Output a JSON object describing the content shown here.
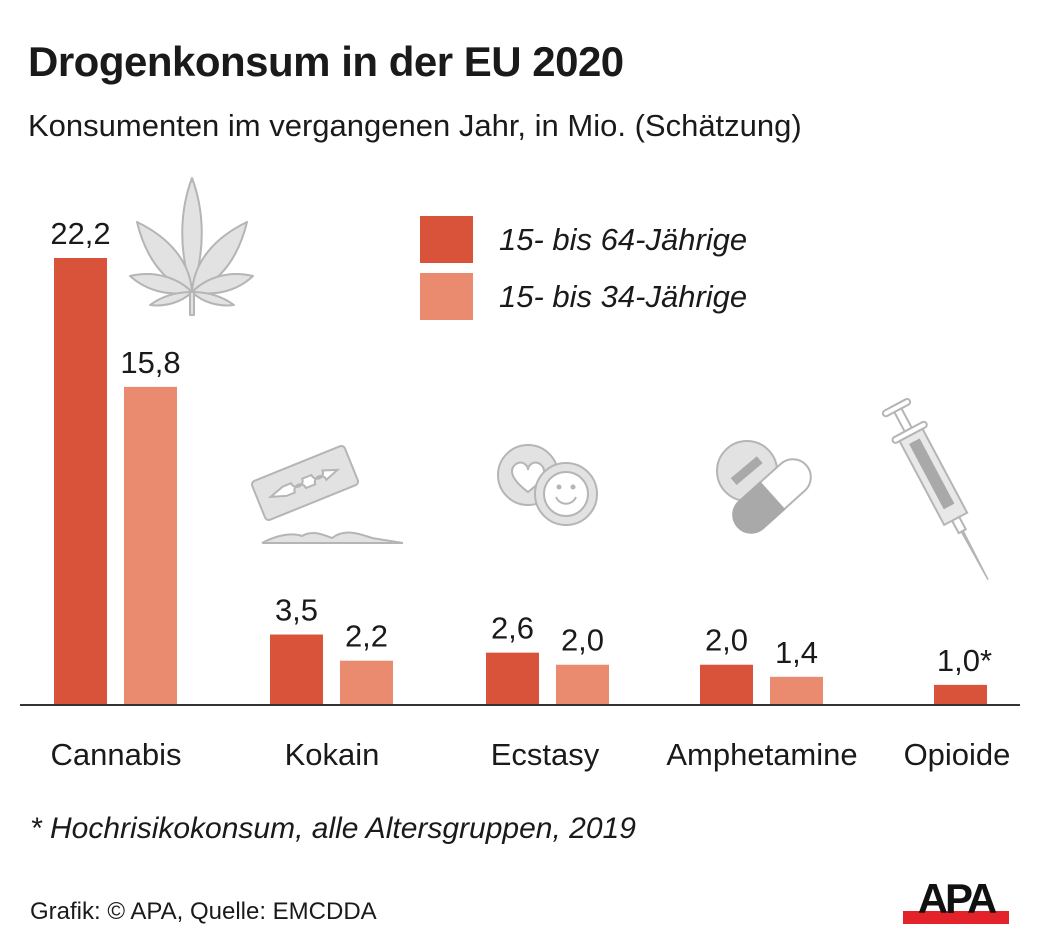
{
  "header": {
    "title": "Drogenkonsum in der EU 2020",
    "subtitle": "Konsumenten im vergangenen Jahr, in Mio. (Schätzung)"
  },
  "colors": {
    "series_1": "#d9533a",
    "series_2": "#ea8b6f",
    "axis": "#333333",
    "icon_fill": "#e2e2e2",
    "icon_stroke": "#b5b5b5",
    "icon_dark": "#a9a9a9",
    "logo_red": "#e3222a",
    "logo_black": "#111111"
  },
  "legend": [
    {
      "label": "15- bis 64-Jährige",
      "color": "#d9533a"
    },
    {
      "label": "15- bis 34-Jährige",
      "color": "#ea8b6f"
    }
  ],
  "chart_data": {
    "type": "bar",
    "title": "Drogenkonsum in der EU 2020",
    "subtitle": "Konsumenten im vergangenen Jahr, in Mio. (Schätzung)",
    "xlabel": "",
    "ylabel": "",
    "ylim": [
      0,
      22.2
    ],
    "grid": false,
    "legend_position": "top-center",
    "categories": [
      "Cannabis",
      "Kokain",
      "Ecstasy",
      "Amphetamine",
      "Opioide"
    ],
    "series": [
      {
        "name": "15- bis 64-Jährige",
        "values": [
          22.2,
          3.5,
          2.6,
          2.0,
          1.0
        ],
        "labels": [
          "22,2",
          "3,5",
          "2,6",
          "2,0",
          "1,0*"
        ]
      },
      {
        "name": "15- bis 34-Jährige",
        "values": [
          15.8,
          2.2,
          2.0,
          1.4,
          null
        ],
        "labels": [
          "15,8",
          "2,2",
          "2,0",
          "1,4",
          ""
        ]
      }
    ],
    "icons": [
      "cannabis-leaf-icon",
      "razor-blade-cocaine-icon",
      "ecstasy-pills-icon",
      "amphetamine-pills-icon",
      "syringe-icon"
    ],
    "annotations": [
      "* Hochrisikokonsum, alle Altersgruppen, 2019"
    ]
  },
  "footer": {
    "footnote": "* Hochrisikokonsum, alle Altersgruppen, 2019",
    "source": "Grafik: © APA, Quelle: EMCDDA",
    "logo_text": "APA"
  }
}
